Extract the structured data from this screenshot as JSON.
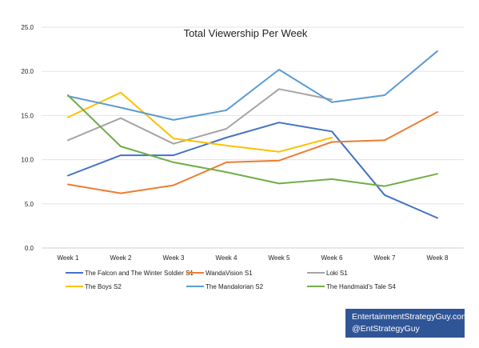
{
  "chart_data": {
    "type": "line",
    "title": "Total Viewership Per Week",
    "xlabel": "",
    "ylabel": "",
    "categories": [
      "Week 1",
      "Week 2",
      "Week 3",
      "Week 4",
      "Week 5",
      "Week 6",
      "Week 7",
      "Week 8"
    ],
    "ylim": [
      0,
      25
    ],
    "yticks": [
      "0.0",
      "5.0",
      "10.0",
      "15.0",
      "20.0",
      "25.0"
    ],
    "grid": true,
    "legend_position": "bottom",
    "series": [
      {
        "name": "The Falcon and The Winter Soldier S1",
        "color": "#4472c4",
        "values": [
          8.2,
          10.5,
          10.5,
          12.5,
          14.2,
          13.2,
          6.0,
          3.4
        ]
      },
      {
        "name": "WandaVision S1",
        "color": "#ed7d31",
        "values": [
          7.2,
          6.2,
          7.1,
          9.7,
          9.9,
          12.0,
          12.2,
          15.4
        ]
      },
      {
        "name": "Loki S1",
        "color": "#a5a5a5",
        "values": [
          12.2,
          14.7,
          11.8,
          13.5,
          18.0,
          16.8,
          null,
          null
        ]
      },
      {
        "name": "The Boys S2",
        "color": "#ffc000",
        "values": [
          14.8,
          17.6,
          12.4,
          11.6,
          10.9,
          12.5,
          null,
          null
        ]
      },
      {
        "name": "The Mandalorian S2",
        "color": "#5b9bd5",
        "values": [
          17.2,
          15.9,
          14.5,
          15.6,
          20.2,
          16.5,
          17.3,
          22.3
        ]
      },
      {
        "name": "The Handmaid's Tale S4",
        "color": "#70ad47",
        "values": [
          17.3,
          11.5,
          9.7,
          8.6,
          7.3,
          7.8,
          7.0,
          8.4
        ]
      }
    ]
  },
  "source": {
    "line1": "EntertainmentStrategyGuy.com",
    "line2": "@EntStrategyGuy"
  }
}
